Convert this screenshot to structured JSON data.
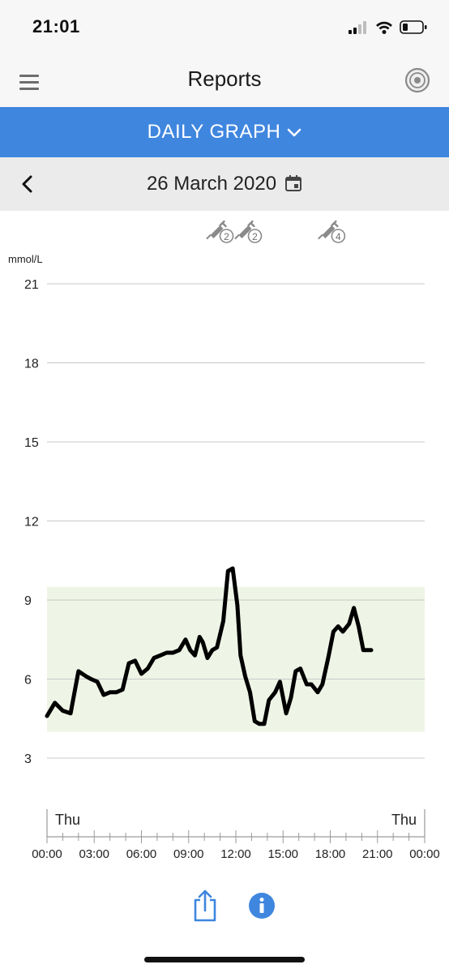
{
  "status_bar": {
    "time": "21:01"
  },
  "header": {
    "title": "Reports",
    "menu_icon": "hamburger-menu-icon",
    "sensor_icon": "sensor-icon"
  },
  "report_selector": {
    "label": "DAILY GRAPH",
    "icon": "chevron-down-icon"
  },
  "date_nav": {
    "date": "26 March 2020",
    "back_icon": "chevron-left-icon",
    "calendar_icon": "calendar-icon"
  },
  "colors": {
    "accent": "#3f86df",
    "target_range": "#eef5e6",
    "line": "#000000"
  },
  "insulin_markers": [
    {
      "time": 11.1,
      "count": "2"
    },
    {
      "time": 12.9,
      "count": "2"
    },
    {
      "time": 18.2,
      "count": "4"
    }
  ],
  "chart_data": {
    "type": "line",
    "ylabel": "mmol/L",
    "ylim": [
      3,
      21
    ],
    "yticks": [
      "3",
      "6",
      "9",
      "12",
      "15",
      "18",
      "21"
    ],
    "xlim": [
      0,
      24
    ],
    "xticks": [
      "00:00",
      "03:00",
      "06:00",
      "09:00",
      "12:00",
      "15:00",
      "18:00",
      "21:00",
      "00:00"
    ],
    "day_labels": {
      "start": "Thu",
      "end": "Thu"
    },
    "target_range": [
      4,
      9.5
    ],
    "grid": true,
    "series": [
      {
        "x": [
          0,
          0.5,
          1.0,
          1.5,
          2.0,
          2.5,
          2.8,
          3.2,
          3.6,
          4.0,
          4.4,
          4.8,
          5.2,
          5.6,
          6.0,
          6.4,
          6.8,
          7.2,
          7.6,
          8.0,
          8.4,
          8.8,
          9.1,
          9.4,
          9.7,
          9.9,
          10.2,
          10.5,
          10.8,
          11.2,
          11.5,
          11.8,
          12.1,
          12.3,
          12.6,
          12.9,
          13.2,
          13.5,
          13.8,
          14.1,
          14.5,
          14.8,
          15.2,
          15.5,
          15.8,
          16.1,
          16.5,
          16.8,
          17.2,
          17.5,
          17.9,
          18.2,
          18.5,
          18.8,
          19.2,
          19.5,
          19.8,
          20.1,
          20.4,
          20.6
        ],
        "y": [
          4.6,
          5.1,
          4.8,
          4.7,
          6.3,
          6.1,
          6.0,
          5.9,
          5.4,
          5.5,
          5.5,
          5.6,
          6.6,
          6.7,
          6.2,
          6.4,
          6.8,
          6.9,
          7.0,
          7.0,
          7.1,
          7.5,
          7.1,
          6.9,
          7.6,
          7.4,
          6.8,
          7.1,
          7.2,
          8.2,
          10.1,
          10.2,
          8.8,
          6.9,
          6.1,
          5.5,
          4.4,
          4.3,
          4.3,
          5.2,
          5.5,
          5.9,
          4.7,
          5.3,
          6.3,
          6.4,
          5.8,
          5.8,
          5.5,
          5.8,
          6.9,
          7.8,
          8.0,
          7.8,
          8.1,
          8.7,
          8.0,
          7.1,
          7.1,
          7.1
        ]
      }
    ]
  },
  "actions": {
    "share_icon": "share-icon",
    "info_icon": "info-icon"
  }
}
